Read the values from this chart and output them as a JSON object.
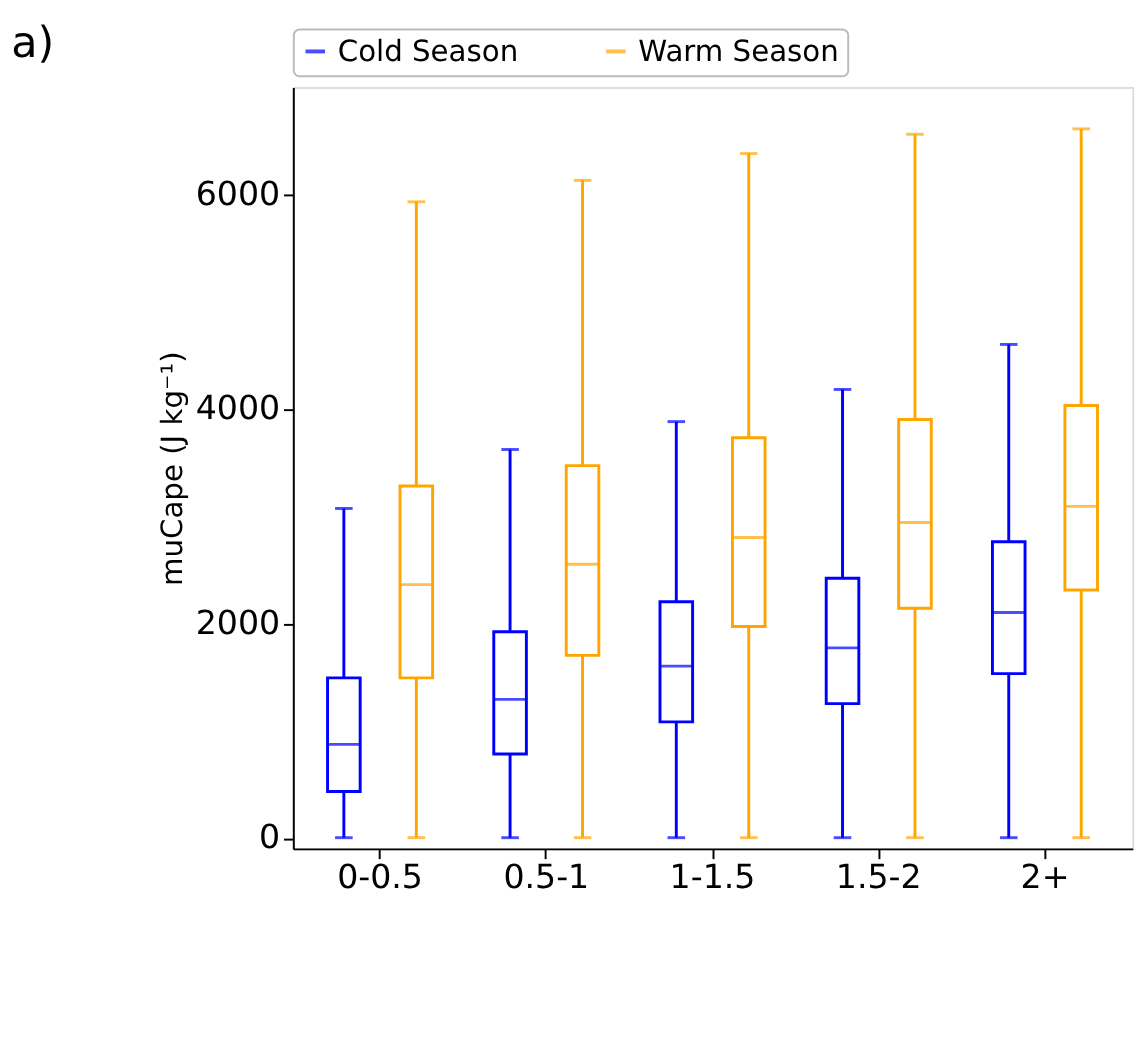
{
  "chart_data": {
    "type": "box",
    "title": "a)",
    "ylabel": "muCape (J kg⁻¹)",
    "categories": [
      "0-0.5",
      "0.5-1",
      "1-1.5",
      "1.5-2",
      "2+"
    ],
    "ylim": [
      -100,
      7000
    ],
    "yticks": [
      0,
      2000,
      4000,
      6000
    ],
    "grid": false,
    "legend": "top",
    "series": [
      {
        "name": "Cold Season",
        "color": "#0000ff",
        "boxes": [
          {
            "low": 0,
            "q1": 430,
            "median": 870,
            "q3": 1490,
            "high": 3070
          },
          {
            "low": 0,
            "q1": 780,
            "median": 1290,
            "q3": 1920,
            "high": 3620
          },
          {
            "low": 0,
            "q1": 1080,
            "median": 1600,
            "q3": 2200,
            "high": 3880
          },
          {
            "low": 0,
            "q1": 1250,
            "median": 1770,
            "q3": 2420,
            "high": 4180
          },
          {
            "low": 0,
            "q1": 1530,
            "median": 2100,
            "q3": 2760,
            "high": 4600
          }
        ]
      },
      {
        "name": "Warm Season",
        "color": "#ffa500",
        "boxes": [
          {
            "low": 0,
            "q1": 1490,
            "median": 2360,
            "q3": 3280,
            "high": 5930
          },
          {
            "low": 0,
            "q1": 1700,
            "median": 2550,
            "q3": 3470,
            "high": 6130
          },
          {
            "low": 0,
            "q1": 1970,
            "median": 2800,
            "q3": 3730,
            "high": 6380
          },
          {
            "low": 0,
            "q1": 2140,
            "median": 2940,
            "q3": 3900,
            "high": 6560
          },
          {
            "low": 0,
            "q1": 2310,
            "median": 3090,
            "q3": 4030,
            "high": 6610
          }
        ]
      }
    ]
  }
}
